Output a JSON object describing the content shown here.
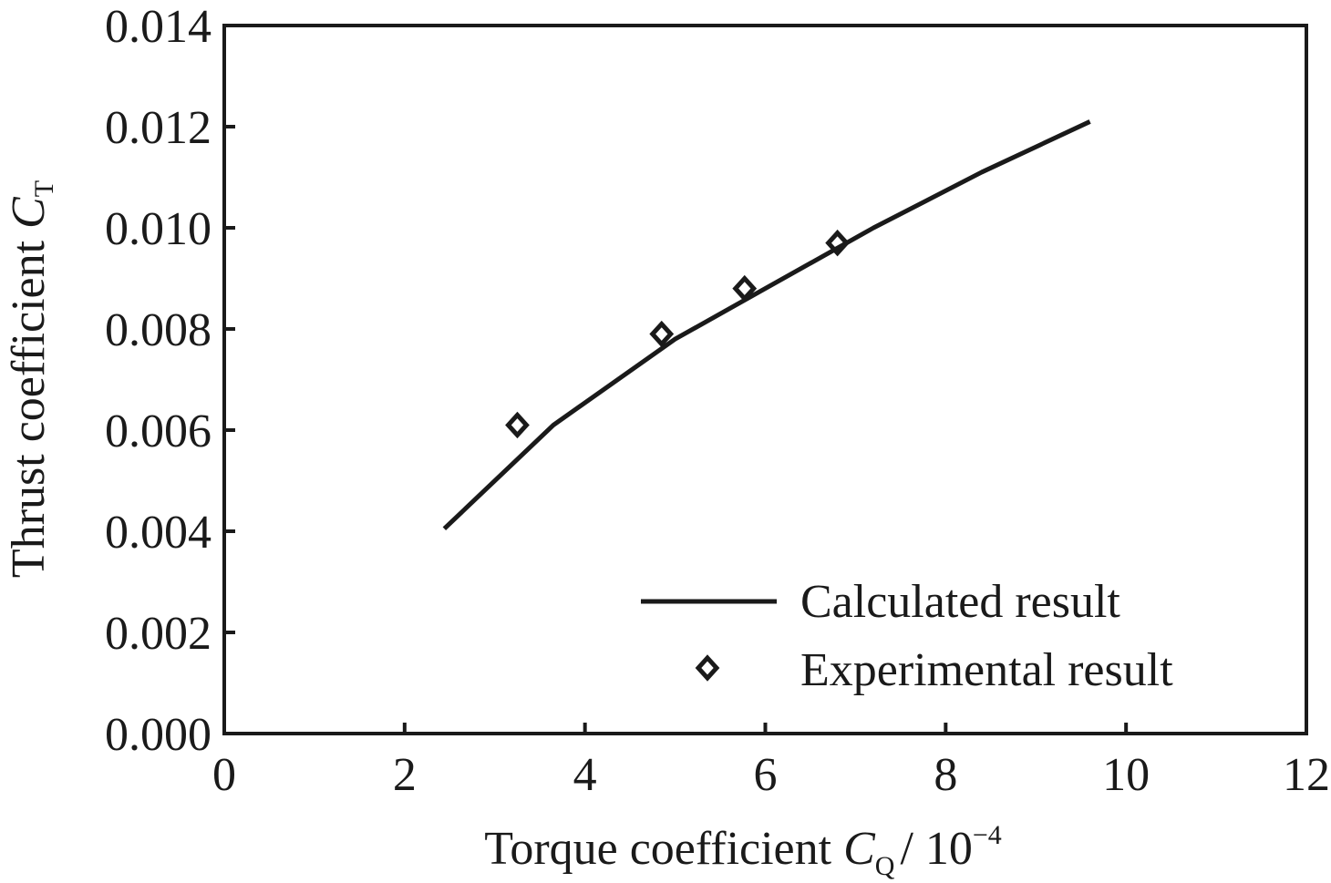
{
  "chart_data": {
    "type": "line",
    "title": "",
    "xlabel": {
      "main": "Torque coefficient ",
      "symbol": "C",
      "sub": "Q",
      "suffix": "/ 10",
      "exp": "−4"
    },
    "ylabel": {
      "main": "Thrust coefficient ",
      "symbol": "C",
      "sub": "T"
    },
    "xlim": [
      0,
      12
    ],
    "ylim": [
      0,
      0.014
    ],
    "xticks": [
      "0",
      "2",
      "4",
      "6",
      "8",
      "10",
      "12"
    ],
    "yticks": [
      "0.000",
      "0.002",
      "0.004",
      "0.006",
      "0.008",
      "0.010",
      "0.012",
      "0.014"
    ],
    "grid": false,
    "legend_position": "bottom-right",
    "series": [
      {
        "name": "Calculated result",
        "style": "line",
        "x": [
          2.44,
          3.65,
          5.0,
          6.0,
          7.2,
          8.4,
          9.6
        ],
        "y": [
          0.00405,
          0.0061,
          0.0078,
          0.0088,
          0.01,
          0.0111,
          0.0121
        ]
      },
      {
        "name": "Experimental result",
        "style": "diamond",
        "x": [
          3.25,
          4.85,
          5.77,
          6.8
        ],
        "y": [
          0.0061,
          0.0079,
          0.0088,
          0.0097
        ]
      }
    ],
    "color": "#1a1a1a"
  }
}
